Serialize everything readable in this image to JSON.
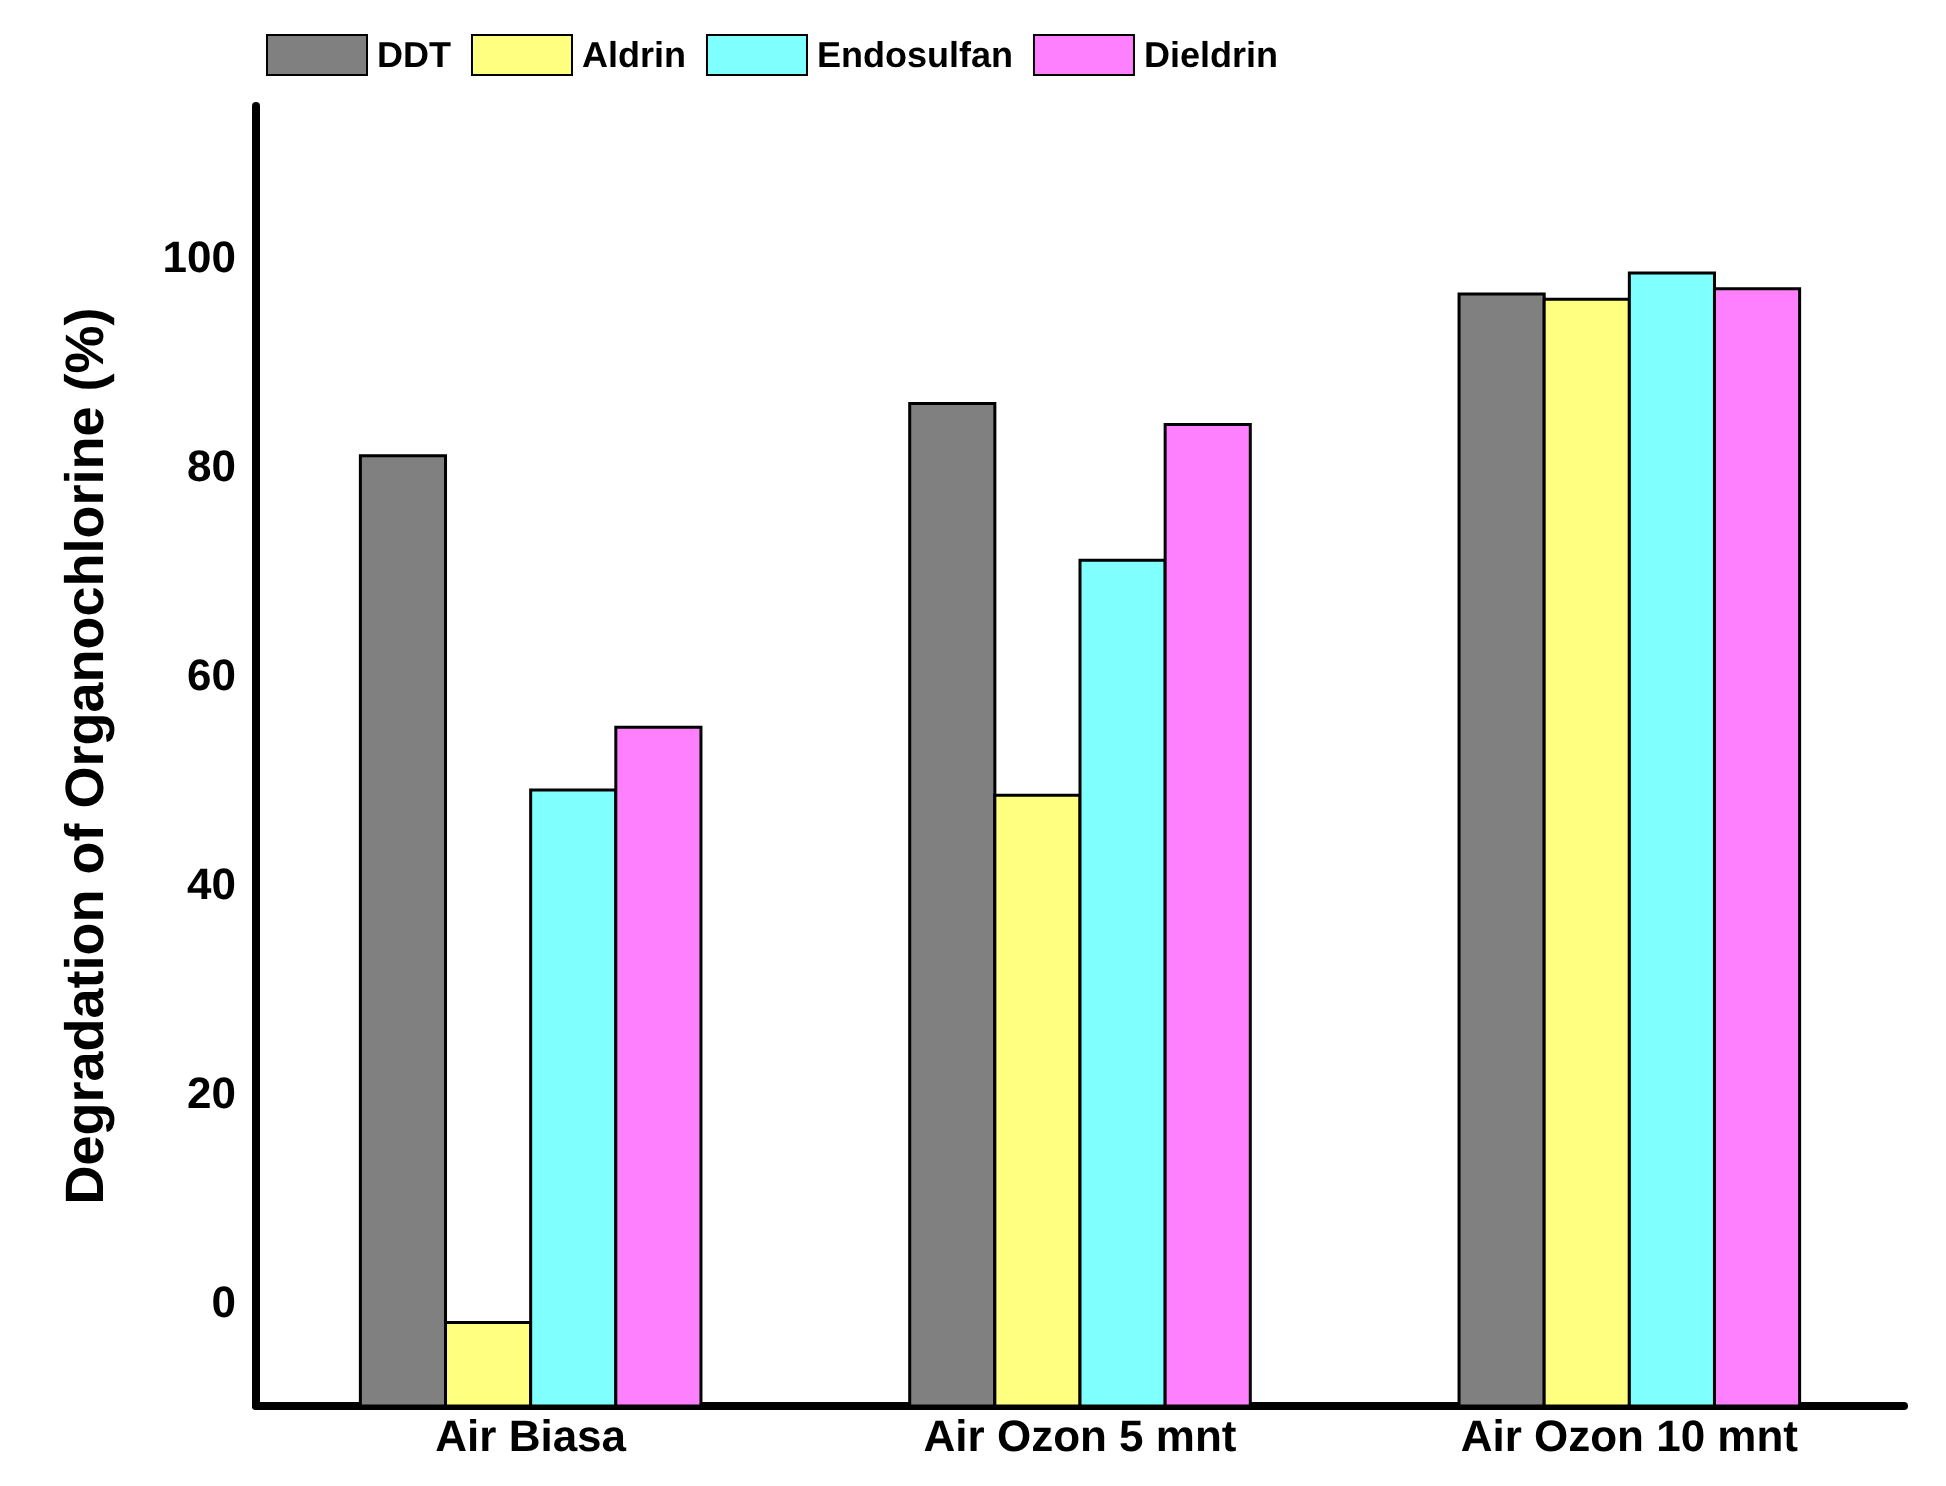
{
  "chart_data": {
    "type": "bar",
    "ylabel": "Degradation of Organochlorine (%)",
    "categories": [
      "Air Biasa",
      "Air Ozon 5 mnt",
      "Air Ozon 10 mnt"
    ],
    "series": [
      {
        "name": "DDT",
        "color": "#808080",
        "base": [
          -10,
          -10,
          -10
        ],
        "values": [
          91,
          96,
          106.5
        ]
      },
      {
        "name": "Aldrin",
        "color": "#ffff80",
        "base": [
          -10,
          -10,
          -10
        ],
        "values": [
          8,
          58.5,
          106
        ]
      },
      {
        "name": "Endosulfan",
        "color": "#80ffff",
        "base": [
          -10,
          -10,
          -10
        ],
        "values": [
          59,
          81,
          108.5
        ]
      },
      {
        "name": "Dieldrin",
        "color": "#ff80ff",
        "base": [
          -10,
          -10,
          -10
        ],
        "values": [
          65,
          94,
          107
        ]
      }
    ],
    "ylim": [
      -10,
      114.5
    ],
    "yticks": [
      0,
      20,
      40,
      60,
      80,
      100
    ],
    "grid": false,
    "legend": "top left"
  }
}
